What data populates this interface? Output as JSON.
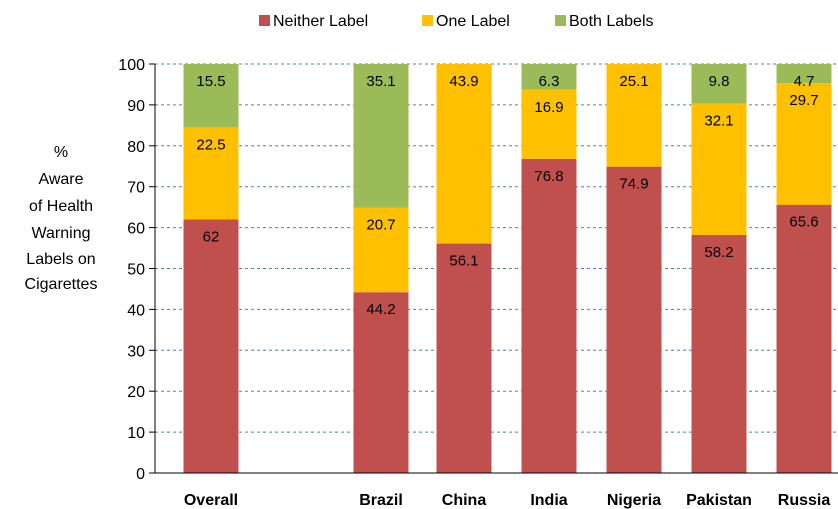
{
  "chart_data": {
    "type": "bar",
    "stacked": true,
    "categories": [
      "Overall",
      "",
      "Brazil",
      "China",
      "India",
      "Nigeria",
      "Pakistan",
      "Russia"
    ],
    "series": [
      {
        "name": "Neither Label",
        "color": "#c0504d",
        "values": [
          62,
          null,
          44.2,
          56.1,
          76.8,
          74.9,
          58.2,
          65.6
        ]
      },
      {
        "name": "One Label",
        "color": "#ffc000",
        "values": [
          22.5,
          null,
          20.7,
          43.9,
          16.9,
          25.1,
          32.1,
          29.7
        ]
      },
      {
        "name": "Both Labels",
        "color": "#9bbb59",
        "values": [
          15.5,
          null,
          35.1,
          null,
          6.3,
          null,
          9.8,
          4.7
        ]
      }
    ],
    "data_labels": [
      [
        "62",
        "",
        "44.2",
        "56.1",
        "76.8",
        "74.9",
        "58.2",
        "65.6"
      ],
      [
        "22.5",
        "",
        "20.7",
        "43.9",
        "16.9",
        "25.1",
        "32.1",
        "29.7"
      ],
      [
        "15.5",
        "",
        "35.1",
        "",
        "6.3",
        "",
        "9.8",
        "4.7"
      ]
    ],
    "ylabel_lines": [
      "%",
      "Aware",
      "of Health",
      "Warning",
      "Labels on",
      "Cigarettes"
    ],
    "ylim": [
      0,
      100
    ],
    "yticks": [
      0,
      10,
      20,
      30,
      40,
      50,
      60,
      70,
      80,
      90,
      100
    ],
    "ytick_labels": [
      "0",
      "10",
      "20",
      "30",
      "40",
      "50",
      "60",
      "70",
      "80",
      "90",
      "100"
    ],
    "grid": "horizontal-dashed",
    "grid_color": "#4f81bd",
    "legend": "top-center"
  }
}
